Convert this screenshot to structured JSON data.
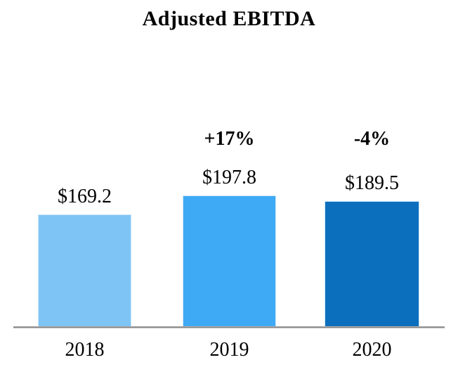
{
  "title": "Adjusted EBITDA",
  "chart_data": {
    "type": "bar",
    "title": "Adjusted EBITDA",
    "categories": [
      "2018",
      "2019",
      "2020"
    ],
    "values": [
      169.2,
      197.8,
      189.5
    ],
    "value_labels": [
      "$169.2",
      "$197.8",
      "$189.5"
    ],
    "pct_change_labels": [
      null,
      "+17%",
      "-4%"
    ],
    "bar_colors": [
      "#7EC4F5",
      "#3EA9F5",
      "#0B6FBE"
    ],
    "axis_line_color": "#8F8F8F",
    "text_color": "#000000",
    "background_color": "#FFFFFF",
    "ylim": [
      0,
      220
    ],
    "grid": false,
    "y_axis_visible": false,
    "x_axis_line_visible": true,
    "legend": "none"
  }
}
